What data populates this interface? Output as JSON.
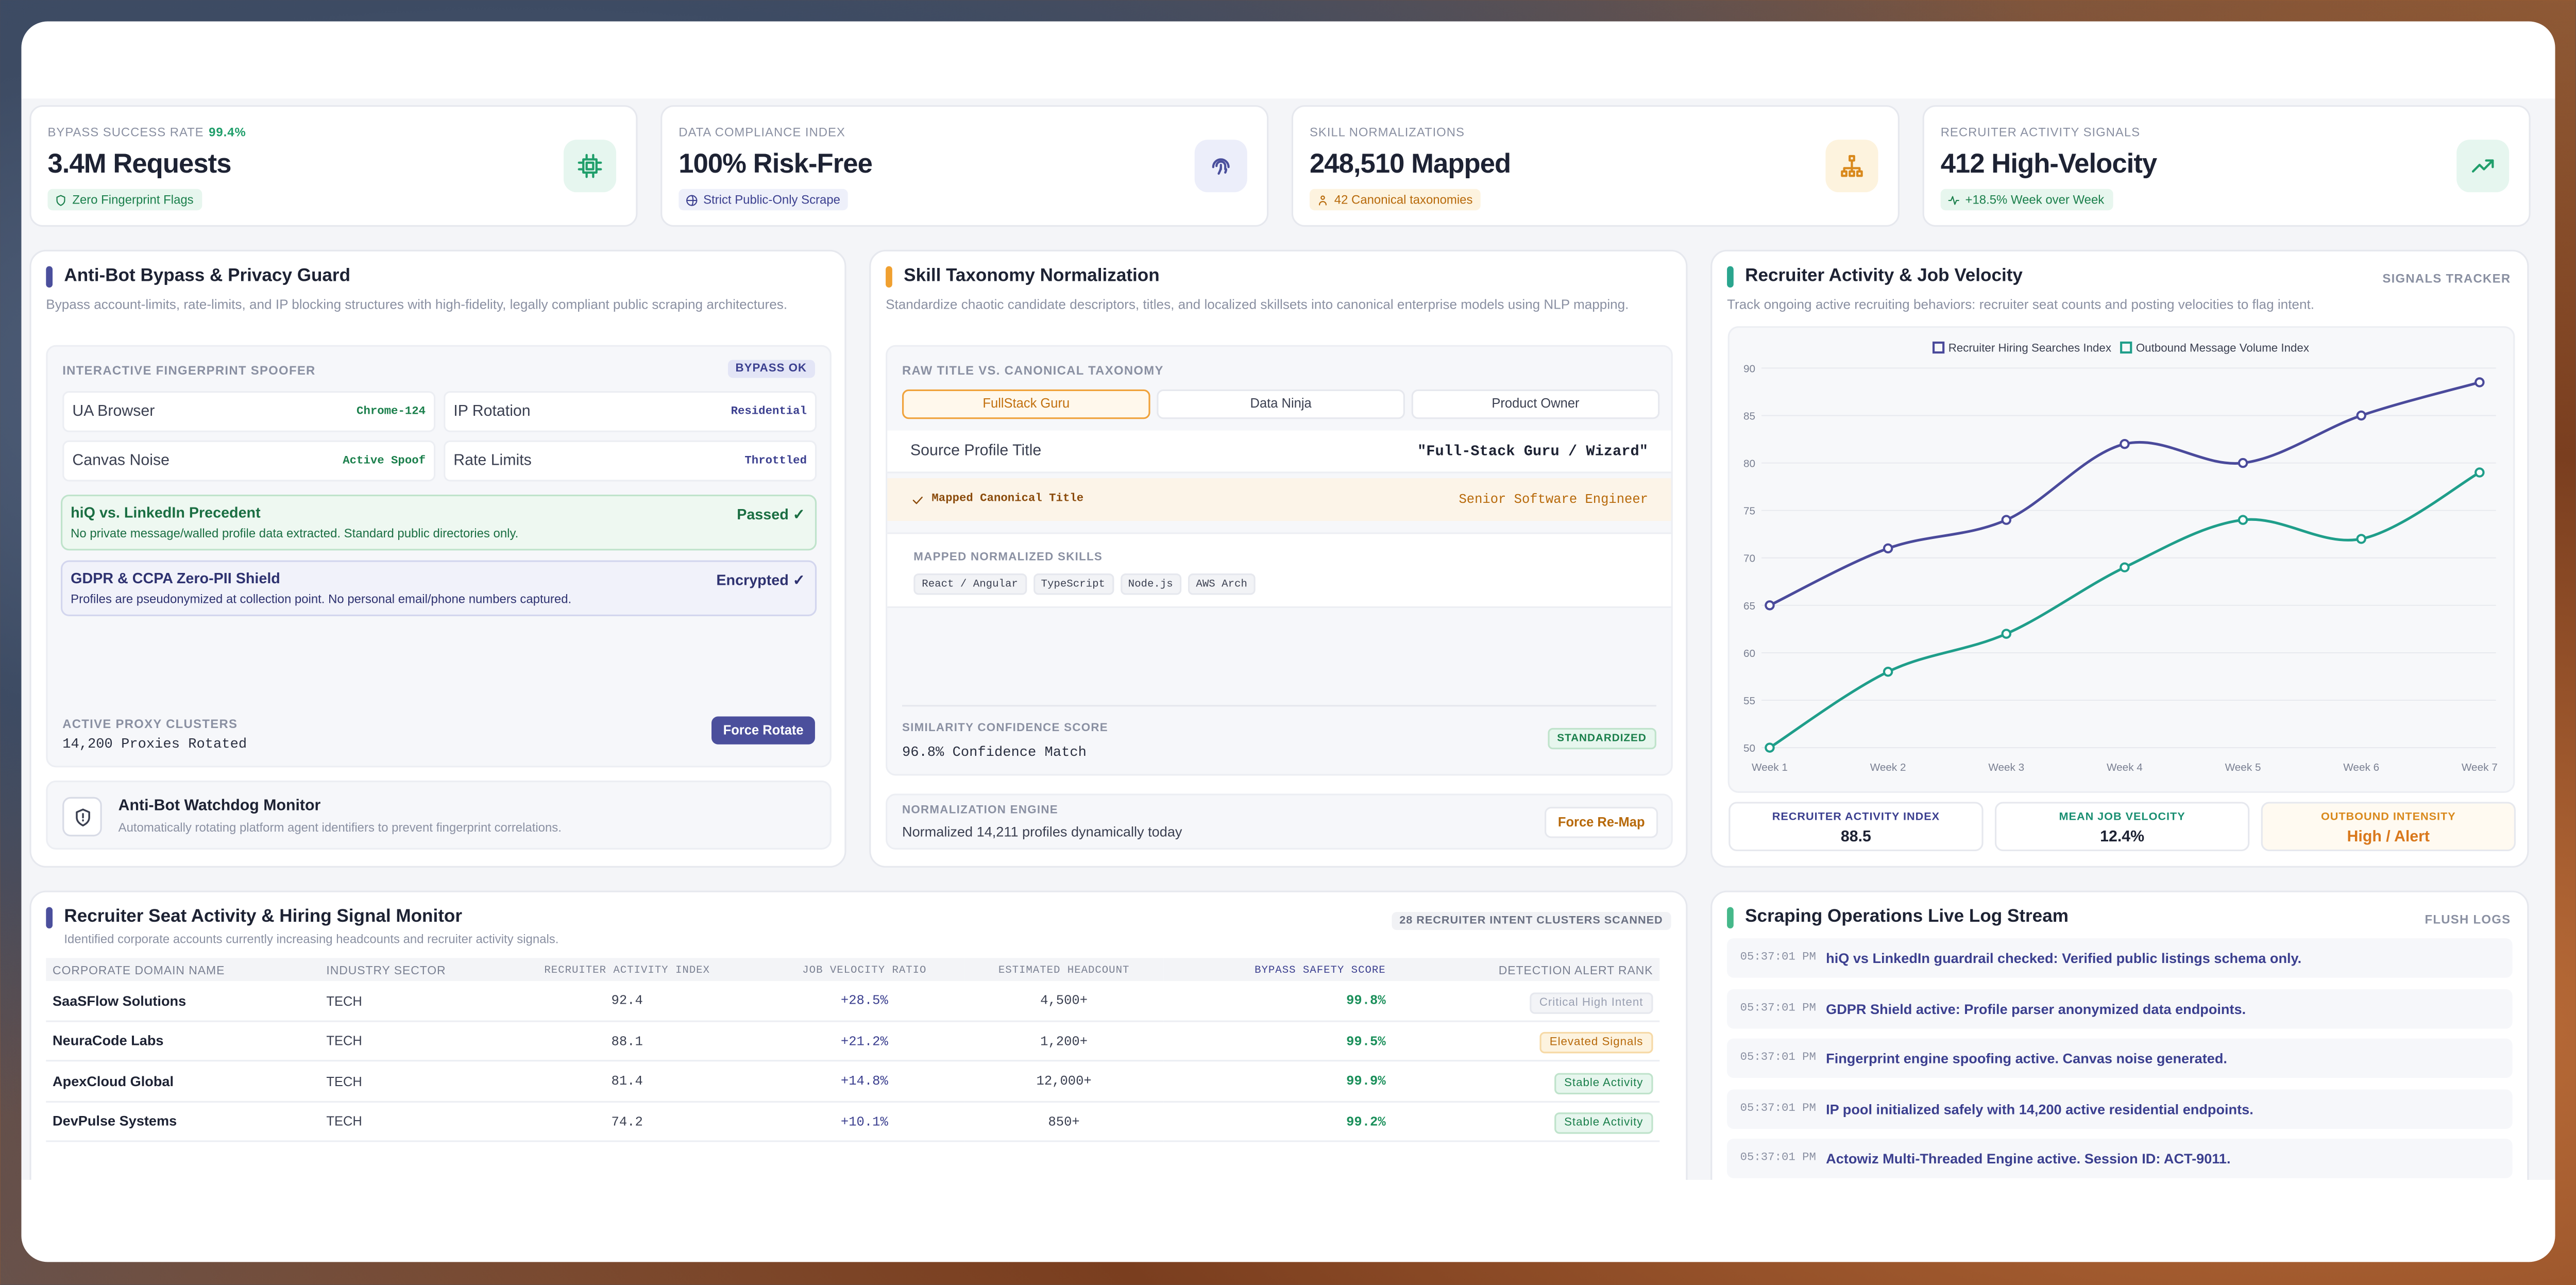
{
  "kpis": [
    {
      "label": "BYPASS SUCCESS RATE",
      "badge": "99.4%",
      "value": "3.4M Requests",
      "tag": "Zero Fingerprint Flags"
    },
    {
      "label": "DATA COMPLIANCE INDEX",
      "value": "100% Risk-Free",
      "tag": "Strict Public-Only Scrape"
    },
    {
      "label": "SKILL NORMALIZATIONS",
      "value": "248,510 Mapped",
      "tag": "42 Canonical taxonomies"
    },
    {
      "label": "RECRUITER ACTIVITY SIGNALS",
      "value": "412 High-Velocity",
      "tag": "+18.5% Week over Week"
    }
  ],
  "antibot": {
    "title": "Anti-Bot Bypass & Privacy Guard",
    "subtitle": "Bypass account-limits, rate-limits, and IP blocking structures with high-fidelity, legally compliant public scraping architectures.",
    "section": "INTERACTIVE FINGERPRINT SPOOFER",
    "status": "BYPASS OK",
    "params": [
      {
        "name": "UA Browser",
        "value": "Chrome-124"
      },
      {
        "name": "IP Rotation",
        "value": "Residential"
      },
      {
        "name": "Canvas Noise",
        "value": "Active Spoof"
      },
      {
        "name": "Rate Limits",
        "value": "Throttled"
      }
    ],
    "checks": [
      {
        "title": "hiQ vs. LinkedIn Precedent",
        "status": "Passed ✓",
        "desc": "No private message/walled profile data extracted. Standard public directories only."
      },
      {
        "title": "GDPR & CCPA Zero-PII Shield",
        "status": "Encrypted ✓",
        "desc": "Profiles are pseudonymized at collection point. No personal email/phone numbers captured."
      }
    ],
    "proxy_label": "ACTIVE PROXY CLUSTERS",
    "proxy_value": "14,200 Proxies Rotated",
    "button": "Force Rotate",
    "monitor_title": "Anti-Bot Watchdog Monitor",
    "monitor_desc": "Automatically rotating platform agent identifiers to prevent fingerprint correlations."
  },
  "taxonomy": {
    "title": "Skill Taxonomy Normalization",
    "subtitle": "Standardize chaotic candidate descriptors, titles, and localized skillsets into canonical enterprise models using NLP mapping.",
    "section": "RAW TITLE VS. CANONICAL TAXONOMY",
    "tabs": [
      "FullStack Guru",
      "Data Ninja",
      "Product Owner"
    ],
    "source_label": "Source Profile Title",
    "source_value": "\"Full-Stack Guru / Wizard\"",
    "mapped_label": "Mapped Canonical Title",
    "mapped_value": "Senior Software Engineer",
    "skills_label": "MAPPED NORMALIZED SKILLS",
    "skills": [
      "React / Angular",
      "TypeScript",
      "Node.js",
      "AWS Arch"
    ],
    "score_label": "SIMILARITY CONFIDENCE SCORE",
    "score_value": "96.8% Confidence Match",
    "score_badge": "STANDARDIZED",
    "engine_label": "NORMALIZATION ENGINE",
    "engine_value": "Normalized 14,211 profiles dynamically today",
    "button": "Force Re-Map"
  },
  "recruiter": {
    "title": "Recruiter Activity & Job Velocity",
    "tag": "SIGNALS TRACKER",
    "subtitle": "Track ongoing active recruiting behaviors: recruiter seat counts and posting velocities to flag intent.",
    "stats": [
      {
        "label": "RECRUITER ACTIVITY INDEX",
        "value": "88.5"
      },
      {
        "label": "MEAN JOB VELOCITY",
        "value": "12.4%"
      },
      {
        "label": "OUTBOUND INTENSITY",
        "value": "High / Alert"
      }
    ]
  },
  "chart_data": {
    "type": "line",
    "categories": [
      "Week 1",
      "Week 2",
      "Week 3",
      "Week 4",
      "Week 5",
      "Week 6",
      "Week 7"
    ],
    "series": [
      {
        "name": "Recruiter Hiring Searches Index",
        "color": "#4a4a9b",
        "values": [
          65,
          71,
          74,
          82,
          80,
          85,
          88.5
        ]
      },
      {
        "name": "Outbound Message Volume Index",
        "color": "#1f9e8a",
        "values": [
          50,
          58,
          62,
          69,
          74,
          72,
          79
        ]
      }
    ],
    "ylim": [
      50,
      90
    ],
    "yticks": [
      50,
      55,
      60,
      65,
      70,
      75,
      80,
      85,
      90
    ],
    "grid": true,
    "smooth": true,
    "legend_position": "top"
  },
  "table": {
    "title": "Recruiter Seat Activity & Hiring Signal Monitor",
    "subtitle": "Identified corporate accounts currently increasing headcounts and recruiter activity signals.",
    "badge": "28 RECRUITER INTENT CLUSTERS SCANNED",
    "columns": [
      "CORPORATE DOMAIN NAME",
      "INDUSTRY SECTOR",
      "RECRUITER ACTIVITY INDEX",
      "JOB VELOCITY RATIO",
      "ESTIMATED HEADCOUNT",
      "BYPASS SAFETY SCORE",
      "DETECTION ALERT RANK"
    ],
    "rows": [
      [
        "SaaSFlow Solutions",
        "TECH",
        "92.4",
        "+28.5%",
        "4,500+",
        "99.8%",
        "Critical High Intent"
      ],
      [
        "NeuraCode Labs",
        "TECH",
        "88.1",
        "+21.2%",
        "1,200+",
        "99.5%",
        "Elevated Signals"
      ],
      [
        "ApexCloud Global",
        "TECH",
        "81.4",
        "+14.8%",
        "12,000+",
        "99.9%",
        "Stable Activity"
      ],
      [
        "DevPulse Systems",
        "TECH",
        "74.2",
        "+10.1%",
        "850+",
        "99.2%",
        "Stable Activity"
      ]
    ]
  },
  "logs": {
    "title": "Scraping Operations Live Log Stream",
    "action": "FLUSH LOGS",
    "entries": [
      {
        "time": "05:37:01 PM",
        "text": "hiQ vs LinkedIn guardrail checked: Verified public listings schema only."
      },
      {
        "time": "05:37:01 PM",
        "text": "GDPR Shield active: Profile parser anonymized data endpoints."
      },
      {
        "time": "05:37:01 PM",
        "text": "Fingerprint engine spoofing active. Canvas noise generated."
      },
      {
        "time": "05:37:01 PM",
        "text": "IP pool initialized safely with 14,200 active residential endpoints."
      },
      {
        "time": "05:37:01 PM",
        "text": "Actowiz Multi-Threaded Engine active. Session ID: ACT-9011."
      }
    ]
  }
}
